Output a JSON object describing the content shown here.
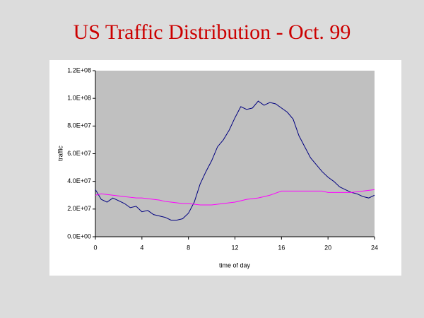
{
  "chart_data": {
    "type": "line",
    "title": "US Traffic Distribution - Oct. 99",
    "xlabel": "time of day",
    "ylabel": "traffic",
    "x": [
      0,
      0.5,
      1,
      1.5,
      2,
      2.5,
      3,
      3.5,
      4,
      4.5,
      5,
      5.5,
      6,
      6.5,
      7,
      7.5,
      8,
      8.5,
      9,
      9.5,
      10,
      10.5,
      11,
      11.5,
      12,
      12.5,
      13,
      13.5,
      14,
      14.5,
      15,
      15.5,
      16,
      16.5,
      17,
      17.5,
      18,
      18.5,
      19,
      19.5,
      20,
      20.5,
      21,
      21.5,
      22,
      22.5,
      23,
      23.5,
      24
    ],
    "series": [
      {
        "color": "#000080",
        "values": [
          34000000.0,
          27000000.0,
          25000000.0,
          28000000.0,
          26000000.0,
          24000000.0,
          21000000.0,
          22000000.0,
          18000000.0,
          19000000.0,
          16000000.0,
          15000000.0,
          14000000.0,
          12000000.0,
          12000000.0,
          13000000.0,
          17000000.0,
          25000000.0,
          38000000.0,
          47000000.0,
          55000000.0,
          65000000.0,
          70000000.0,
          77000000.0,
          86000000.0,
          94000000.0,
          92000000.0,
          93000000.0,
          98000000.0,
          95000000.0,
          97000000.0,
          96000000.0,
          93000000.0,
          90000000.0,
          85000000.0,
          73000000.0,
          65000000.0,
          57000000.0,
          52000000.0,
          47000000.0,
          43000000.0,
          40000000.0,
          36000000.0,
          34000000.0,
          32000000.0,
          31000000.0,
          29000000.0,
          28000000.0,
          30000000.0
        ]
      },
      {
        "color": "#ff00ff",
        "values": [
          30000000.0,
          31000000.0,
          30500000.0,
          30000000.0,
          29500000.0,
          29000000.0,
          28500000.0,
          28000000.0,
          28000000.0,
          27500000.0,
          27000000.0,
          26500000.0,
          25500000.0,
          25000000.0,
          24500000.0,
          24000000.0,
          24000000.0,
          23500000.0,
          23000000.0,
          23000000.0,
          23000000.0,
          23500000.0,
          24000000.0,
          24500000.0,
          25000000.0,
          26000000.0,
          27000000.0,
          27500000.0,
          28000000.0,
          29000000.0,
          30000000.0,
          31500000.0,
          33000000.0,
          33000000.0,
          33000000.0,
          33000000.0,
          33000000.0,
          33000000.0,
          33000000.0,
          33000000.0,
          32000000.0,
          32000000.0,
          32000000.0,
          32000000.0,
          32000000.0,
          32500000.0,
          33000000.0,
          33500000.0,
          34000000.0
        ]
      }
    ],
    "xlim": [
      0,
      24
    ],
    "xticks": [
      0,
      4,
      8,
      12,
      16,
      20,
      24
    ],
    "ylim": [
      0,
      120000000.0
    ],
    "yticks": [
      {
        "value": 0,
        "label": "0.0E+00"
      },
      {
        "value": 20000000.0,
        "label": "2.0E+07"
      },
      {
        "value": 40000000.0,
        "label": "4.0E+07"
      },
      {
        "value": 60000000.0,
        "label": "6.0E+07"
      },
      {
        "value": 80000000.0,
        "label": "8.0E+07"
      },
      {
        "value": 100000000.0,
        "label": "1.0E+08"
      },
      {
        "value": 120000000.0,
        "label": "1.2E+08"
      }
    ],
    "grid": false
  }
}
